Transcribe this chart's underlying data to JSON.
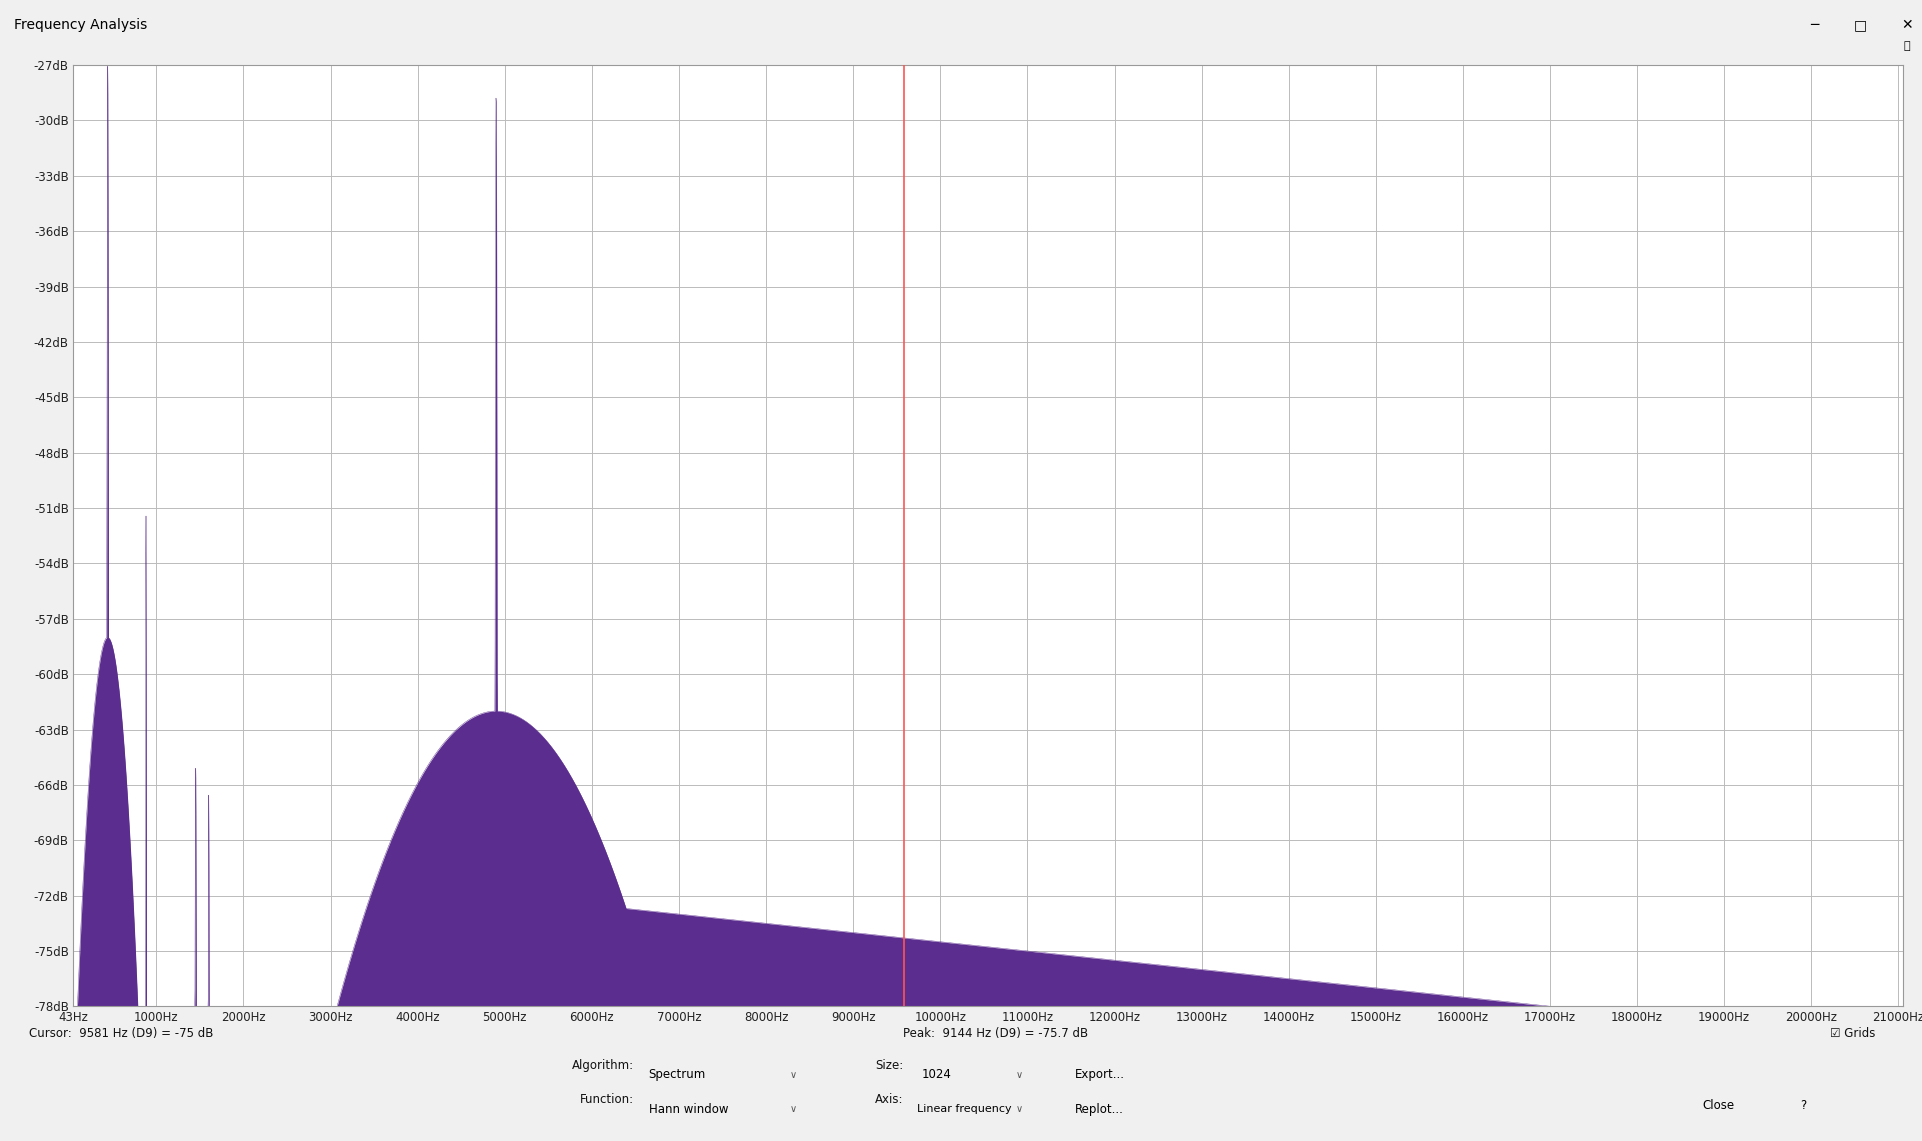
{
  "title": "Frequency Analysis",
  "bg_color": "#f0f0f0",
  "plot_bg_color": "#ffffff",
  "spectrum_fill_color": "#5b2d8e",
  "spectrum_line_color": "#5b2d8e",
  "grid_color": "#bbbbbb",
  "cursor_line_color": "#ff5555",
  "cursor_line_x": 9581,
  "y_min": -78,
  "y_max": -27,
  "y_ticks": [
    -27,
    -30,
    -33,
    -36,
    -39,
    -42,
    -45,
    -48,
    -51,
    -54,
    -57,
    -60,
    -63,
    -66,
    -69,
    -72,
    -75,
    -78
  ],
  "x_min": 43,
  "x_max": 21050,
  "x_ticks": [
    43,
    1000,
    2000,
    3000,
    4000,
    5000,
    6000,
    7000,
    8000,
    9000,
    10000,
    11000,
    12000,
    13000,
    14000,
    15000,
    16000,
    17000,
    18000,
    19000,
    20000,
    21000
  ],
  "x_tick_labels": [
    "43Hz",
    "1000Hz",
    "2000Hz",
    "3000Hz",
    "4000Hz",
    "5000Hz",
    "6000Hz",
    "7000Hz",
    "8000Hz",
    "9000Hz",
    "10000Hz",
    "11000Hz",
    "12000Hz",
    "13000Hz",
    "14000Hz",
    "15000Hz",
    "16000Hz",
    "17000Hz",
    "18000Hz",
    "19000Hz",
    "20000Hz",
    "21000Hz"
  ],
  "cursor_text": "Cursor:  9581 Hz (D9) = -75 dB",
  "peak_text": "Peak:  9144 Hz (D9) = -75.7 dB",
  "algorithm_label": "Algorithm:",
  "algorithm_value": "Spectrum",
  "size_label": "Size:",
  "size_value": "1024",
  "function_label": "Function:",
  "function_value": "Hann window",
  "axis_label": "Axis:",
  "axis_value": "Linear frequency",
  "export_btn": "Export...",
  "replot_btn": "Replot...",
  "close_btn": "Close",
  "grids_text": "Grids"
}
